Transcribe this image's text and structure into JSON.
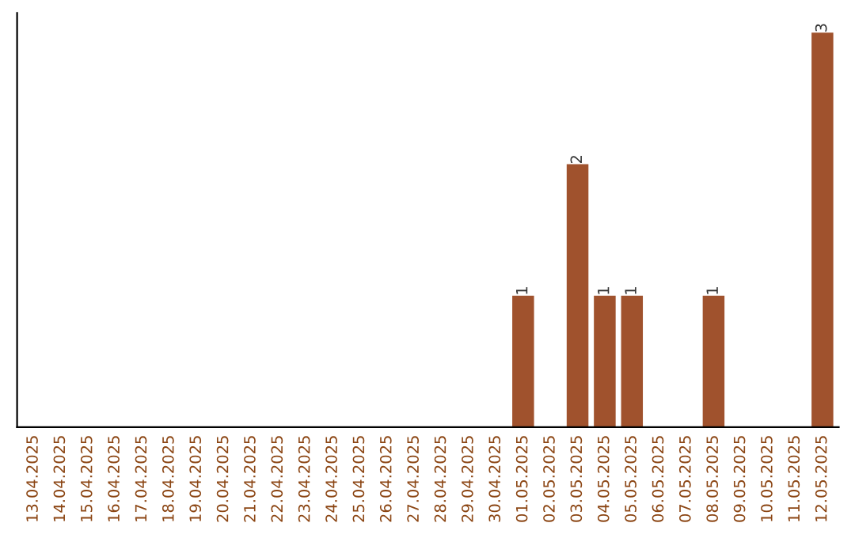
{
  "chart_data": {
    "type": "bar",
    "categories": [
      "13.04.2025",
      "14.04.2025",
      "15.04.2025",
      "16.04.2025",
      "17.04.2025",
      "18.04.2025",
      "19.04.2025",
      "20.04.2025",
      "21.04.2025",
      "22.04.2025",
      "23.04.2025",
      "24.04.2025",
      "25.04.2025",
      "26.04.2025",
      "27.04.2025",
      "28.04.2025",
      "29.04.2025",
      "30.04.2025",
      "01.05.2025",
      "02.05.2025",
      "03.05.2025",
      "04.05.2025",
      "05.05.2025",
      "06.05.2025",
      "07.05.2025",
      "08.05.2025",
      "09.05.2025",
      "10.05.2025",
      "11.05.2025",
      "12.05.2025"
    ],
    "values": [
      null,
      null,
      null,
      null,
      null,
      null,
      null,
      null,
      null,
      null,
      null,
      null,
      null,
      null,
      null,
      null,
      null,
      null,
      1,
      null,
      2,
      1,
      1,
      null,
      null,
      1,
      null,
      null,
      null,
      3
    ],
    "data_labels": true,
    "color": "#a0522d",
    "tick_labels": "x",
    "grid": false,
    "legend": false
  }
}
